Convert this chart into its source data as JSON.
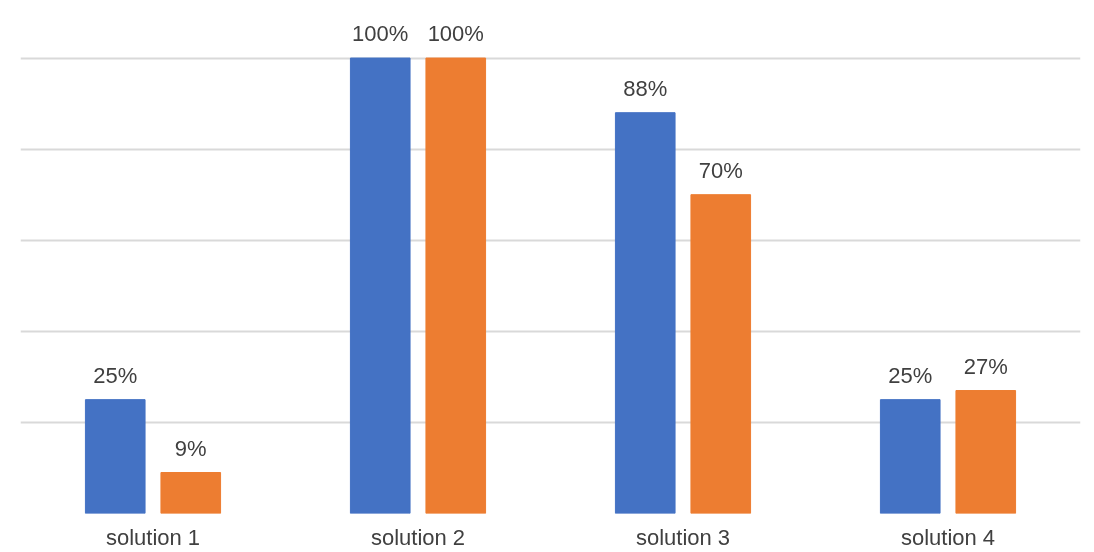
{
  "chart_data": {
    "type": "bar",
    "categories": [
      "solution 1",
      "solution 2",
      "solution 3",
      "solution 4"
    ],
    "series": [
      {
        "color": "#4472c4",
        "values": [
          25,
          100,
          88,
          25
        ],
        "value_labels": [
          "25%",
          "100%",
          "88%",
          "25%"
        ]
      },
      {
        "color": "#ed7d31",
        "values": [
          9,
          100,
          70,
          27
        ],
        "value_labels": [
          "9%",
          "100%",
          "70%",
          "27%"
        ]
      }
    ],
    "tick_labels": "x",
    "grid": "y"
  }
}
